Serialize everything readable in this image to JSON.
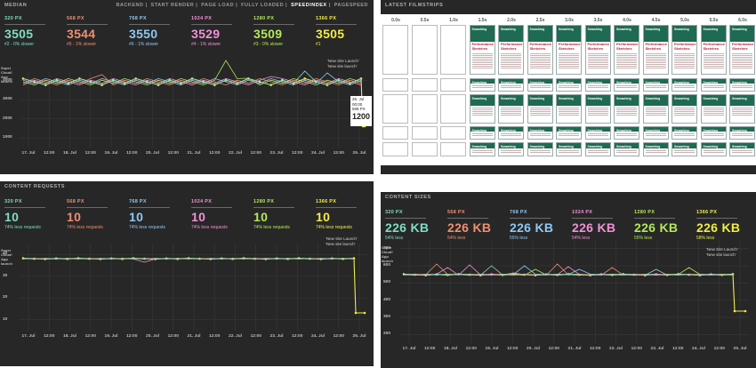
{
  "colors": {
    "p320": "#7fdcc3",
    "p568": "#f08e6e",
    "p768": "#8ec9f2",
    "p1024": "#f092d6",
    "p1280": "#b3e85a",
    "p1366": "#f2ed46",
    "grid": "#3a3a3a"
  },
  "median": {
    "title": "MEDIAN",
    "tabs": [
      "BACKEND",
      "START RENDER",
      "PAGE LOAD",
      "FULLY LOADED",
      "SPEEDINDEX",
      "PAGESPEED"
    ],
    "active_tab": "SPEEDINDEX",
    "stats": [
      {
        "label": "320 PX",
        "value": "3505",
        "note": "#2 - 0% slower"
      },
      {
        "label": "568 PX",
        "value": "3544",
        "note": "#5 - 1% slower"
      },
      {
        "label": "768 PX",
        "value": "3550",
        "note": "#6 - 1% slower"
      },
      {
        "label": "1024 PX",
        "value": "3529",
        "note": "#4 - 1% slower"
      },
      {
        "label": "1280 PX",
        "value": "3509",
        "note": "#3 - 0% slower"
      },
      {
        "label": "1366 PX",
        "value": "3505",
        "note": "#1"
      }
    ],
    "y_ticks": [
      "4000",
      "3000",
      "2000",
      "1000"
    ],
    "y_ann": "Super Cloud!\nApp launch",
    "x_ticks": [
      "17. Jul",
      "12:00",
      "18. Jul",
      "12:00",
      "19. Jul",
      "12:00",
      "20. Jul",
      "12:00",
      "21. Jul",
      "12:00",
      "22. Jul",
      "12:00",
      "23. Jul",
      "12:00",
      "24. Jul",
      "12:00",
      "25. Jul"
    ],
    "annotation": "'New Site Launch'\n'New site launch'",
    "tooltip": {
      "date": "25. Jul",
      "time": "00:00",
      "px": "568 PX",
      "value": "1200"
    }
  },
  "requests": {
    "title": "CONTENT REQUESTS",
    "stats": [
      {
        "label": "320 PX",
        "value": "10",
        "note": "74% less requests"
      },
      {
        "label": "568 PX",
        "value": "10",
        "note": "74% less requests"
      },
      {
        "label": "768 PX",
        "value": "10",
        "note": "74% less requests"
      },
      {
        "label": "1024 PX",
        "value": "10",
        "note": "74% less requests"
      },
      {
        "label": "1280 PX",
        "value": "10",
        "note": "74% less requests"
      },
      {
        "label": "1366 PX",
        "value": "10",
        "note": "74% less requests"
      }
    ],
    "y_ticks": [
      "40",
      "30",
      "20",
      "10"
    ],
    "y_ann": "Super Cloud!\nApp launch",
    "x_ticks": [
      "17. Jul",
      "12:00",
      "18. Jul",
      "12:00",
      "19. Jul",
      "12:00",
      "20. Jul",
      "12:00",
      "21. Jul",
      "12:00",
      "22. Jul",
      "12:00",
      "23. Jul",
      "12:00",
      "24. Jul",
      "12:00",
      "25. Jul"
    ],
    "annotation": "'New Site Launch'\n'New site launch'"
  },
  "filmstrips": {
    "title": "LATEST FILMSTRIPS",
    "seconds": [
      "0.0s",
      "0.5s",
      "1.0s",
      "1.5s",
      "2.0s",
      "2.5s",
      "3.0s",
      "3.5s",
      "4.0s",
      "4.5s",
      "5.0s",
      "5.5s",
      "6.0s"
    ],
    "thumb_title": "Performance Sketches",
    "brand": "Smashing"
  },
  "sizes": {
    "title": "CONTENT SIZES",
    "stats": [
      {
        "label": "320 PX",
        "value": "226 KB",
        "note": "54% less"
      },
      {
        "label": "568 PX",
        "value": "226 KB",
        "note": "54% less"
      },
      {
        "label": "768 PX",
        "value": "226 KB",
        "note": "55% less"
      },
      {
        "label": "1024 PX",
        "value": "226 KB",
        "note": "54% less"
      },
      {
        "label": "1280 PX",
        "value": "226 KB",
        "note": "55% less"
      },
      {
        "label": "1366 PX",
        "value": "226 KB",
        "note": "58% less"
      }
    ],
    "y_ticks": [
      "700",
      "600",
      "500",
      "400",
      "300",
      "200"
    ],
    "y_ann": "Super Cloud!\nApp launch",
    "x_ticks": [
      "17. Jul",
      "12:00",
      "18. Jul",
      "12:00",
      "19. Jul",
      "12:00",
      "20. Jul",
      "12:00",
      "21. Jul",
      "12:00",
      "22. Jul",
      "12:00",
      "23. Jul",
      "12:00",
      "24. Jul",
      "12:00",
      "25. Jul"
    ],
    "annotation": "'New Site Launch'\n'New site launch'"
  }
}
